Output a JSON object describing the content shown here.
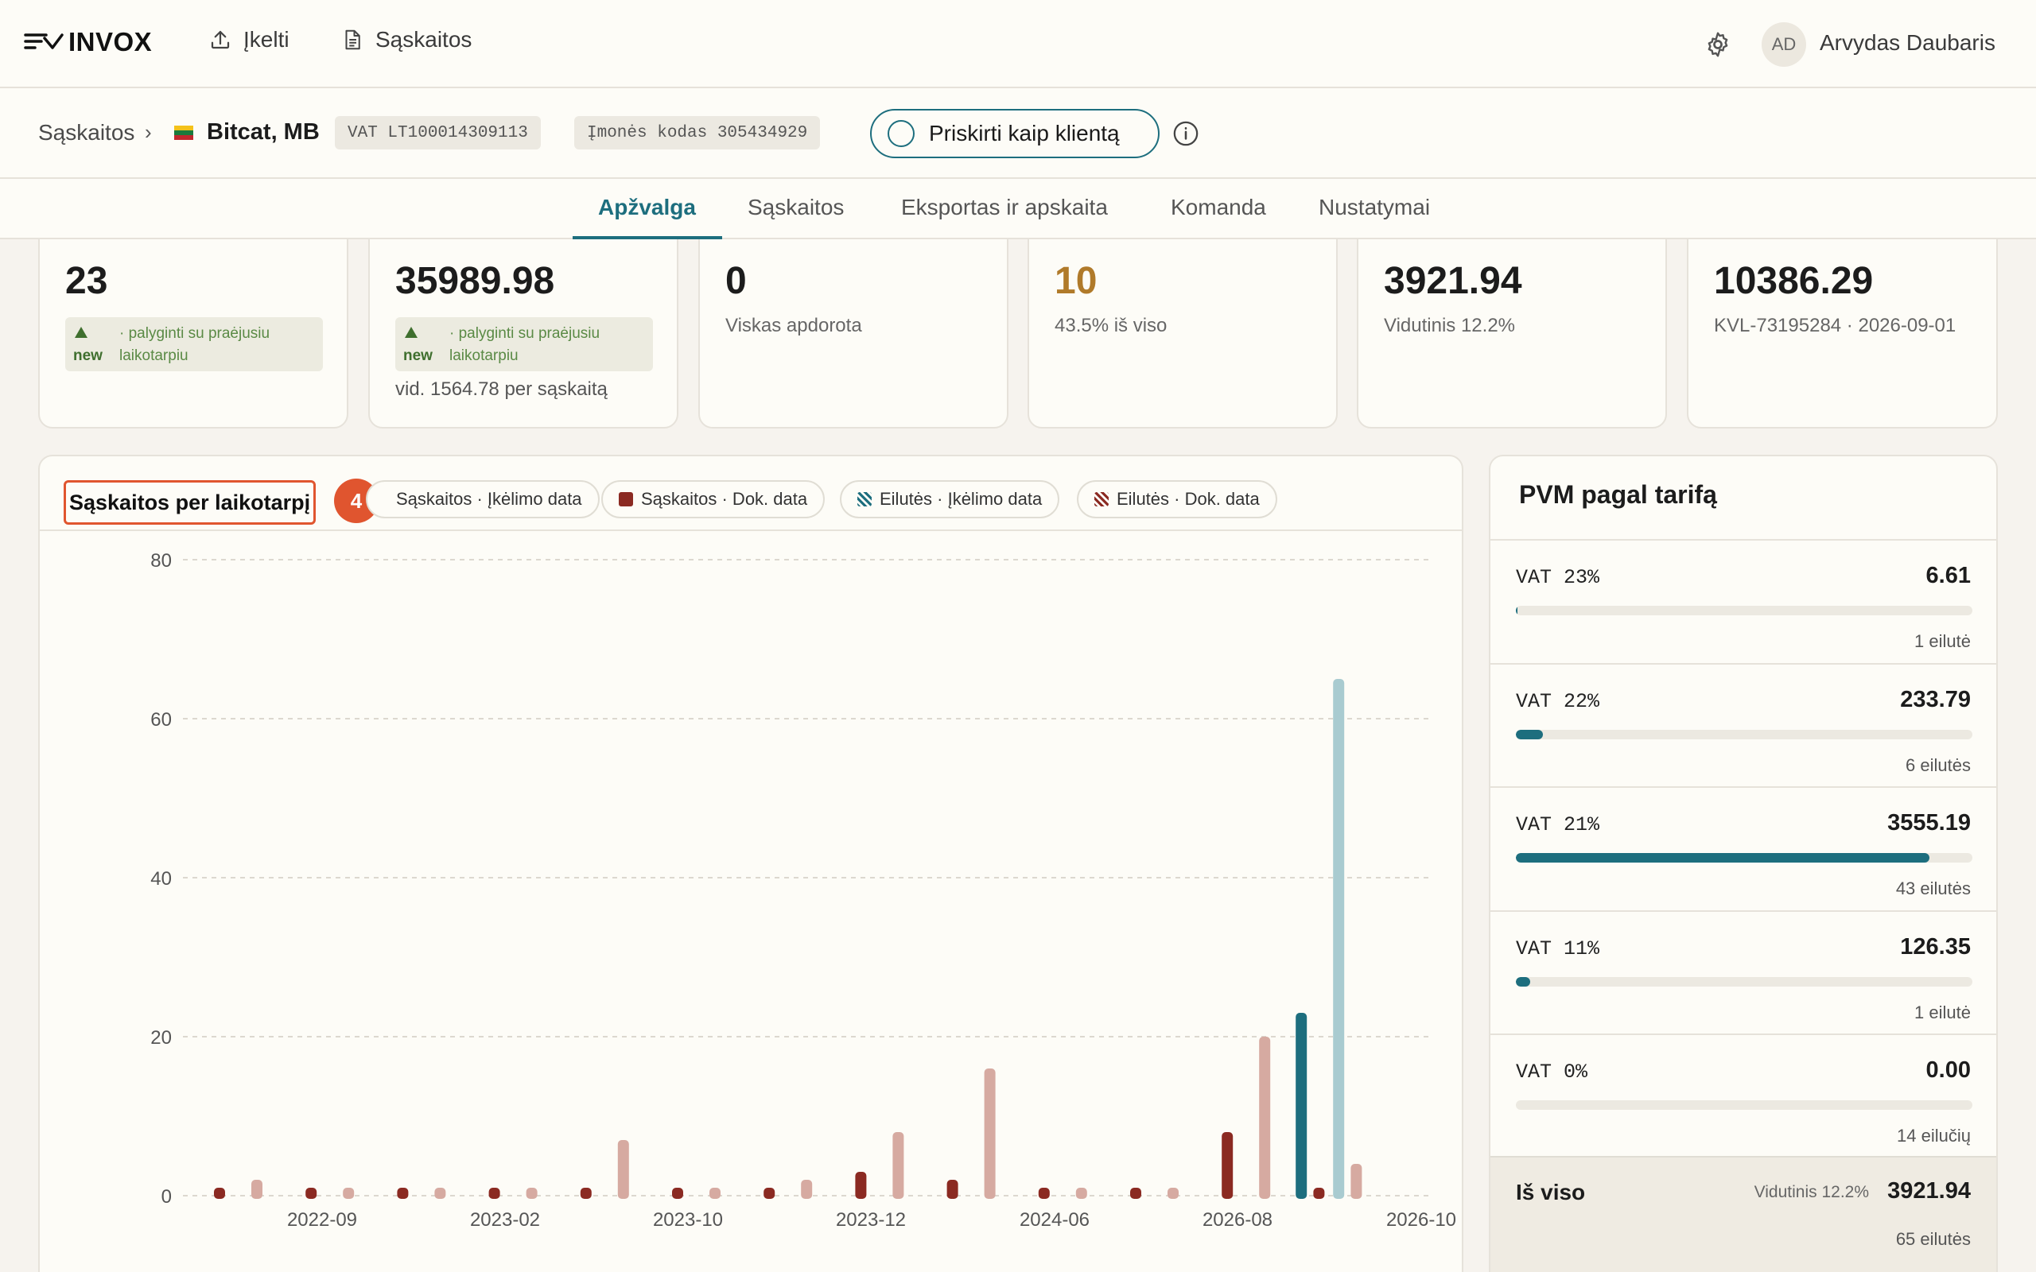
{
  "app": {
    "logo_text": "INVOX"
  },
  "nav": {
    "upload_label": "Įkelti",
    "invoices_label": "Sąskaitos"
  },
  "user": {
    "initials": "AD",
    "name": "Arvydas Daubaris"
  },
  "breadcrumb": {
    "root": "Sąskaitos",
    "separator": "›",
    "company": "Bitcat, MB",
    "vat_chip": "VAT LT100014309113",
    "code_chip": "Įmonės kodas 305434929",
    "assign_label": "Priskirti kaip klientą"
  },
  "tabs": [
    {
      "label": "Apžvalga",
      "active": true
    },
    {
      "label": "Sąskaitos"
    },
    {
      "label": "Eksportas ir apskaita"
    },
    {
      "label": "Komanda"
    },
    {
      "label": "Nustatymai"
    }
  ],
  "stats": [
    {
      "value": "23",
      "trend_badge": "new",
      "trend_line1": "· palyginti su praėjusiu",
      "trend_line2": "laikotarpiu"
    },
    {
      "value": "35989.98",
      "trend_badge": "new",
      "trend_line1": "· palyginti su praėjusiu",
      "trend_line2": "laikotarpiu",
      "extra": "vid. 1564.78 per sąskaitą"
    },
    {
      "value": "0",
      "sub": "Viskas apdorota"
    },
    {
      "value": "10",
      "sub": "43.5% iš viso"
    },
    {
      "value": "3921.94",
      "sub": "Vidutinis 12.2%"
    },
    {
      "value": "10386.29",
      "sub": "KVL-73195284 · 2026-09-01"
    }
  ],
  "chart": {
    "title": "Sąskaitos per laikotarpį",
    "badge": "4",
    "legend": [
      {
        "label": "Sąskaitos · Įkėlimo data"
      },
      {
        "label": "Sąskaitos · Dok. data"
      },
      {
        "label": "Eilutės · Įkėlimo data"
      },
      {
        "label": "Eilutės · Dok. data"
      }
    ]
  },
  "chart_data": {
    "type": "bar",
    "ylim": [
      0,
      80
    ],
    "y_ticks": [
      0,
      20,
      40,
      60,
      80
    ],
    "x_labels": [
      "2022-09",
      "2023-02",
      "2023-10",
      "2023-12",
      "2024-06",
      "2026-08",
      "2026-10"
    ],
    "colors": {
      "saskaitos_dok": "#8b2a22",
      "eilutes_dok": "#d6aaa1",
      "saskaitos_ikel": "#1d6e7e",
      "eilutes_ikel": "#a9cbd0"
    },
    "groups": [
      {
        "saskaitos_dok": 1,
        "eilutes_dok": 2
      },
      {
        "saskaitos_dok": 1,
        "eilutes_dok": 1
      },
      {
        "saskaitos_dok": 1,
        "eilutes_dok": 1
      },
      {
        "saskaitos_dok": 1,
        "eilutes_dok": 1
      },
      {
        "saskaitos_dok": 1,
        "eilutes_dok": 7
      },
      {
        "saskaitos_dok": 1,
        "eilutes_dok": 1
      },
      {
        "saskaitos_dok": 1,
        "eilutes_dok": 2
      },
      {
        "saskaitos_dok": 3,
        "eilutes_dok": 8
      },
      {
        "saskaitos_dok": 2,
        "eilutes_dok": 16
      },
      {
        "saskaitos_dok": 1,
        "eilutes_dok": 1
      },
      {
        "saskaitos_dok": 1,
        "eilutes_dok": 1
      },
      {
        "saskaitos_dok": 8,
        "eilutes_dok": 20,
        "saskaitos_ikel": 23,
        "eilutes_ikel": 65
      },
      {
        "saskaitos_dok": 1,
        "eilutes_dok": 4
      }
    ]
  },
  "vat": {
    "title": "PVM pagal tarifą",
    "rows": [
      {
        "label": "VAT 23%",
        "amount": "6.61",
        "lines": "1 eilutė",
        "share": 0.0017
      },
      {
        "label": "VAT 22%",
        "amount": "233.79",
        "lines": "6 eilutės",
        "share": 0.0596
      },
      {
        "label": "VAT 21%",
        "amount": "3555.19",
        "lines": "43 eilutės",
        "share": 0.9065
      },
      {
        "label": "VAT 11%",
        "amount": "126.35",
        "lines": "1 eilutė",
        "share": 0.0322
      },
      {
        "label": "VAT 0%",
        "amount": "0.00",
        "lines": "14 eilučių",
        "share": 0
      }
    ],
    "total": {
      "label": "Iš viso",
      "avg": "Vidutinis 12.2%",
      "amount": "3921.94",
      "lines": "65 eilutės"
    }
  }
}
